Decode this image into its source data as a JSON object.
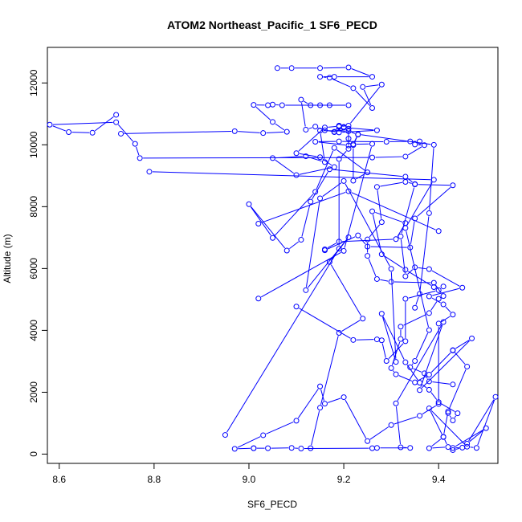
{
  "chart_data": {
    "type": "line",
    "title": "ATOM2 Northeast_Pacific_1 SF6_PECD",
    "xlabel": "SF6_PECD",
    "ylabel": "Altitude (m)",
    "xlim": [
      8.575,
      9.525
    ],
    "ylim": [
      -300,
      13150
    ],
    "xticks": [
      8.6,
      8.8,
      9.0,
      9.2,
      9.4
    ],
    "xtick_labels": [
      "8.6",
      "8.8",
      "9.0",
      "9.2",
      "9.4"
    ],
    "yticks": [
      0,
      2000,
      4000,
      6000,
      8000,
      10000,
      12000
    ],
    "ytick_labels": [
      "0",
      "2000",
      "4000",
      "6000",
      "8000",
      "10000",
      "12000"
    ],
    "grid": false,
    "legend": "none",
    "series_color": "#0000ff",
    "series": [
      {
        "points": [
          [
            9.06,
            12480
          ],
          [
            9.09,
            12480
          ],
          [
            9.15,
            12480
          ],
          [
            9.21,
            12500
          ],
          [
            9.26,
            12200
          ],
          [
            9.18,
            12200
          ],
          [
            9.15,
            12200
          ],
          [
            9.17,
            12170
          ],
          [
            9.22,
            11830
          ],
          [
            9.26,
            11190
          ],
          [
            9.24,
            11870
          ],
          [
            9.28,
            11950
          ],
          [
            9.21,
            10620
          ],
          [
            9.19,
            10590
          ],
          [
            9.2,
            10560
          ],
          [
            9.27,
            10470
          ],
          [
            9.19,
            10400
          ],
          [
            9.16,
            10470
          ],
          [
            9.14,
            10590
          ],
          [
            9.12,
            10490
          ],
          [
            9.11,
            11460
          ],
          [
            9.13,
            11280
          ],
          [
            9.15,
            11280
          ],
          [
            9.17,
            11280
          ],
          [
            9.21,
            11280
          ],
          [
            9.07,
            11280
          ],
          [
            9.05,
            11300
          ],
          [
            9.04,
            11280
          ],
          [
            9.01,
            11290
          ],
          [
            9.05,
            10740
          ],
          [
            9.08,
            10420
          ],
          [
            9.03,
            10380
          ],
          [
            8.97,
            10440
          ],
          [
            8.73,
            10360
          ]
        ]
      },
      {
        "points": [
          [
            8.72,
            10970
          ],
          [
            8.67,
            10390
          ],
          [
            8.62,
            10410
          ],
          [
            8.58,
            10650
          ],
          [
            8.72,
            10730
          ],
          [
            8.76,
            10030
          ],
          [
            8.77,
            9570
          ],
          [
            9.26,
            9590
          ],
          [
            9.33,
            9620
          ],
          [
            9.37,
            9990
          ],
          [
            9.35,
            10010
          ],
          [
            9.36,
            10110
          ],
          [
            9.34,
            10110
          ],
          [
            9.29,
            10100
          ],
          [
            9.19,
            10110
          ],
          [
            9.14,
            10100
          ],
          [
            9.21,
            9980
          ],
          [
            9.21,
            10520
          ],
          [
            9.18,
            10420
          ],
          [
            9.19,
            10620
          ],
          [
            9.2,
            10580
          ],
          [
            9.18,
            10410
          ],
          [
            9.19,
            10600
          ],
          [
            9.16,
            10560
          ],
          [
            9.1,
            9730
          ],
          [
            9.15,
            9600
          ],
          [
            9.18,
            9280
          ],
          [
            9.1,
            9020
          ],
          [
            9.05,
            9570
          ],
          [
            9.12,
            9630
          ],
          [
            9.16,
            9440
          ],
          [
            9.15,
            10460
          ],
          [
            9.21,
            10440
          ],
          [
            9.23,
            10330
          ],
          [
            9.22,
            9990
          ],
          [
            9.22,
            8840
          ],
          [
            9.25,
            9110
          ],
          [
            9.18,
            9900
          ],
          [
            9.14,
            8480
          ],
          [
            9.05,
            6990
          ],
          [
            9.0,
            8080
          ],
          [
            9.08,
            6580
          ],
          [
            9.11,
            6930
          ],
          [
            9.13,
            8160
          ],
          [
            9.17,
            9210
          ],
          [
            9.33,
            8970
          ],
          [
            9.35,
            8730
          ],
          [
            9.33,
            8800
          ],
          [
            9.27,
            8640
          ],
          [
            9.28,
            7500
          ],
          [
            9.25,
            6940
          ],
          [
            9.25,
            6410
          ],
          [
            9.27,
            5660
          ],
          [
            9.3,
            5570
          ],
          [
            9.39,
            5540
          ],
          [
            9.41,
            5110
          ],
          [
            9.4,
            5020
          ],
          [
            9.38,
            4560
          ],
          [
            9.32,
            4120
          ],
          [
            9.32,
            3720
          ],
          [
            9.3,
            2780
          ],
          [
            9.31,
            2580
          ],
          [
            9.35,
            2320
          ],
          [
            9.38,
            2570
          ],
          [
            9.43,
            3350
          ]
        ]
      },
      {
        "points": [
          [
            9.39,
            5400
          ],
          [
            9.33,
            5960
          ],
          [
            9.28,
            6460
          ],
          [
            9.26,
            7850
          ],
          [
            9.33,
            7470
          ],
          [
            9.31,
            6950
          ],
          [
            9.19,
            6870
          ],
          [
            9.16,
            6620
          ],
          [
            9.16,
            6590
          ],
          [
            9.23,
            7070
          ],
          [
            9.25,
            6710
          ],
          [
            9.34,
            6680
          ],
          [
            9.35,
            7620
          ],
          [
            9.43,
            8690
          ],
          [
            9.35,
            8720
          ],
          [
            9.32,
            7040
          ],
          [
            9.33,
            5750
          ],
          [
            9.35,
            6040
          ],
          [
            9.38,
            5980
          ],
          [
            9.45,
            5380
          ],
          [
            9.38,
            5100
          ],
          [
            9.41,
            4840
          ],
          [
            9.43,
            4510
          ],
          [
            9.4,
            4220
          ],
          [
            9.4,
            1620
          ],
          [
            9.36,
            1240
          ],
          [
            9.3,
            940
          ],
          [
            9.25,
            420
          ],
          [
            9.2,
            1840
          ],
          [
            9.16,
            1630
          ],
          [
            9.15,
            2190
          ],
          [
            9.1,
            1080
          ],
          [
            9.03,
            610
          ],
          [
            8.97,
            170
          ],
          [
            9.01,
            190
          ],
          [
            9.01,
            190
          ],
          [
            9.04,
            190
          ],
          [
            9.09,
            200
          ],
          [
            9.11,
            180
          ],
          [
            9.26,
            190
          ],
          [
            9.27,
            200
          ],
          [
            9.34,
            200
          ],
          [
            9.32,
            220
          ],
          [
            9.31,
            1640
          ],
          [
            9.41,
            4270
          ],
          [
            9.36,
            2070
          ],
          [
            9.47,
            3740
          ],
          [
            9.43,
            3360
          ],
          [
            9.46,
            2830
          ],
          [
            9.42,
            1380
          ],
          [
            9.41,
            560
          ],
          [
            9.42,
            230
          ],
          [
            9.38,
            190
          ],
          [
            9.41,
            550
          ],
          [
            9.38,
            1480
          ],
          [
            9.46,
            240
          ],
          [
            9.48,
            200
          ],
          [
            9.52,
            1850
          ],
          [
            9.46,
            340
          ],
          [
            9.5,
            840
          ],
          [
            9.43,
            200
          ],
          [
            9.45,
            210
          ],
          [
            9.43,
            130
          ]
        ]
      },
      {
        "points": [
          [
            9.13,
            190
          ],
          [
            9.15,
            1500
          ],
          [
            9.19,
            3920
          ],
          [
            9.24,
            4380
          ],
          [
            9.17,
            6210
          ],
          [
            9.21,
            7010
          ],
          [
            9.12,
            5300
          ],
          [
            9.15,
            8270
          ],
          [
            9.2,
            8830
          ],
          [
            9.3,
            5990
          ],
          [
            9.31,
            2980
          ],
          [
            9.28,
            4540
          ],
          [
            9.33,
            2970
          ],
          [
            9.36,
            2310
          ],
          [
            9.38,
            2080
          ],
          [
            9.4,
            1680
          ],
          [
            9.44,
            1320
          ],
          [
            9.43,
            1090
          ],
          [
            9.42,
            1330
          ]
        ]
      },
      {
        "points": [
          [
            8.79,
            9130
          ],
          [
            9.39,
            8870
          ],
          [
            9.33,
            7310
          ],
          [
            9.38,
            4010
          ],
          [
            9.35,
            3010
          ],
          [
            9.34,
            2810
          ],
          [
            9.37,
            2610
          ],
          [
            9.38,
            2350
          ],
          [
            9.43,
            2250
          ]
        ]
      },
      {
        "points": [
          [
            9.02,
            5030
          ],
          [
            9.2,
            6570
          ],
          [
            9.26,
            10030
          ],
          [
            9.22,
            10020
          ],
          [
            9.23,
            10340
          ],
          [
            9.39,
            10000
          ],
          [
            9.38,
            7790
          ],
          [
            9.36,
            5180
          ],
          [
            9.35,
            4730
          ]
        ]
      },
      {
        "points": [
          [
            8.95,
            620
          ],
          [
            9.19,
            6640
          ],
          [
            9.19,
            9540
          ],
          [
            9.21,
            9870
          ],
          [
            9.21,
            10200
          ]
        ]
      },
      {
        "points": [
          [
            9.1,
            4770
          ],
          [
            9.22,
            3690
          ],
          [
            9.27,
            3710
          ],
          [
            9.28,
            3680
          ],
          [
            9.29,
            3010
          ],
          [
            9.33,
            3650
          ],
          [
            9.33,
            5020
          ],
          [
            9.4,
            5300
          ],
          [
            9.41,
            5420
          ]
        ]
      },
      {
        "points": [
          [
            9.02,
            7450
          ],
          [
            9.21,
            8500
          ],
          [
            9.4,
            7210
          ]
        ]
      }
    ]
  }
}
